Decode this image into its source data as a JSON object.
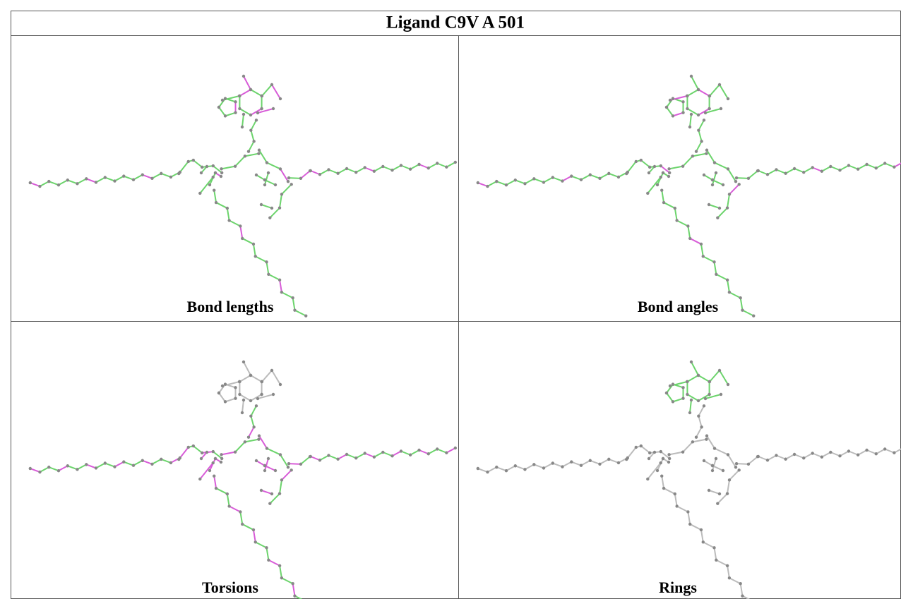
{
  "title": "Ligand C9V A 501",
  "panels": [
    {
      "caption": "Bond lengths"
    },
    {
      "caption": "Bond angles"
    },
    {
      "caption": "Torsions"
    },
    {
      "caption": "Rings"
    }
  ]
}
